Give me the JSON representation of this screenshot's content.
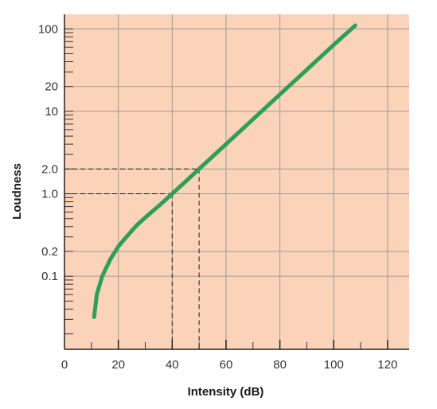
{
  "chart_data": {
    "type": "line",
    "title": "",
    "xlabel": "Intensity (dB)",
    "ylabel": "Loudness",
    "xlim": [
      0,
      128
    ],
    "ylim": [
      0.013,
      150
    ],
    "y_scale": "log",
    "grid": true,
    "x_ticks": [
      20,
      40,
      60,
      80,
      100,
      120
    ],
    "x_tick_labels": [
      "20",
      "40",
      "60",
      "80",
      "100",
      "120"
    ],
    "x_origin_label": "0",
    "y_tick_labels": [
      {
        "value": 100,
        "label": "100"
      },
      {
        "value": 20,
        "label": "20"
      },
      {
        "value": 10,
        "label": "10"
      },
      {
        "value": 2,
        "label": "2.0"
      },
      {
        "value": 1,
        "label": "1.0"
      },
      {
        "value": 0.2,
        "label": "0.2"
      },
      {
        "value": 0.1,
        "label": "0.1"
      }
    ],
    "series": [
      {
        "color": "#2e9e5b",
        "x": [
          11,
          12,
          14,
          17,
          20,
          23,
          27,
          31,
          35,
          40,
          45,
          50,
          60,
          70,
          80,
          90,
          100,
          108
        ],
        "y": [
          0.032,
          0.06,
          0.1,
          0.16,
          0.23,
          0.3,
          0.42,
          0.55,
          0.71,
          1.0,
          1.41,
          2.0,
          4.0,
          8.0,
          16,
          32,
          64,
          110
        ]
      }
    ],
    "reference_lines": [
      {
        "x": 40,
        "y": 1.0
      },
      {
        "x": 50,
        "y": 2.0
      }
    ],
    "colors": {
      "plot_background": "#fbd3b8",
      "grid": "#9c9c9c",
      "curve": "#2e9e5b",
      "reference": "#1a1a1a"
    }
  }
}
